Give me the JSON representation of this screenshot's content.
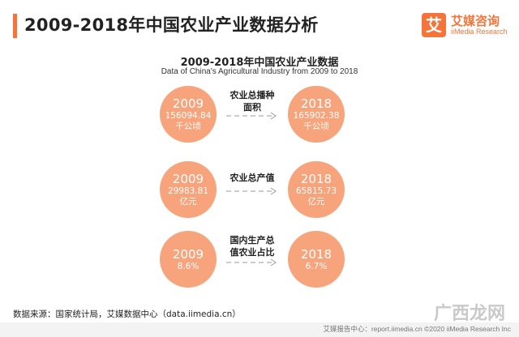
{
  "header": {
    "title": "2009-2018年中国农业产业数据分析"
  },
  "logo": {
    "icon_text": "艾",
    "name_cn": "艾媒咨询",
    "name_en": "iiMedia Research",
    "color": "#f4743a"
  },
  "chart_data": {
    "type": "table",
    "title": "2009-2018年中国农业产业数据",
    "subtitle": "Data of China's Agricultural Industry from 2009 to 2018",
    "years": [
      "2009",
      "2018"
    ],
    "rows": [
      {
        "metric_line1": "农业总播种",
        "metric_line2": "面积",
        "value_2009": "156094.84",
        "value_2018": "165902.38",
        "unit": "千公顷"
      },
      {
        "metric_line1": "农业总产值",
        "metric_line2": "",
        "value_2009": "29983.81",
        "value_2018": "65815.73",
        "unit": "亿元"
      },
      {
        "metric_line1": "国内生产总",
        "metric_line2": "值农业占比",
        "value_2009": "8.6%",
        "value_2018": "6.7%",
        "unit": ""
      }
    ],
    "circle_color": "#f7a47c"
  },
  "footer": {
    "source": "数据来源：国家统计局，艾媒数据中心（data.iimedia.cn）",
    "bottom_text": "艾媒报告中心：report.iimedia.cn  ©2020  iiMedia Research Inc",
    "watermark": "广西龙网"
  }
}
